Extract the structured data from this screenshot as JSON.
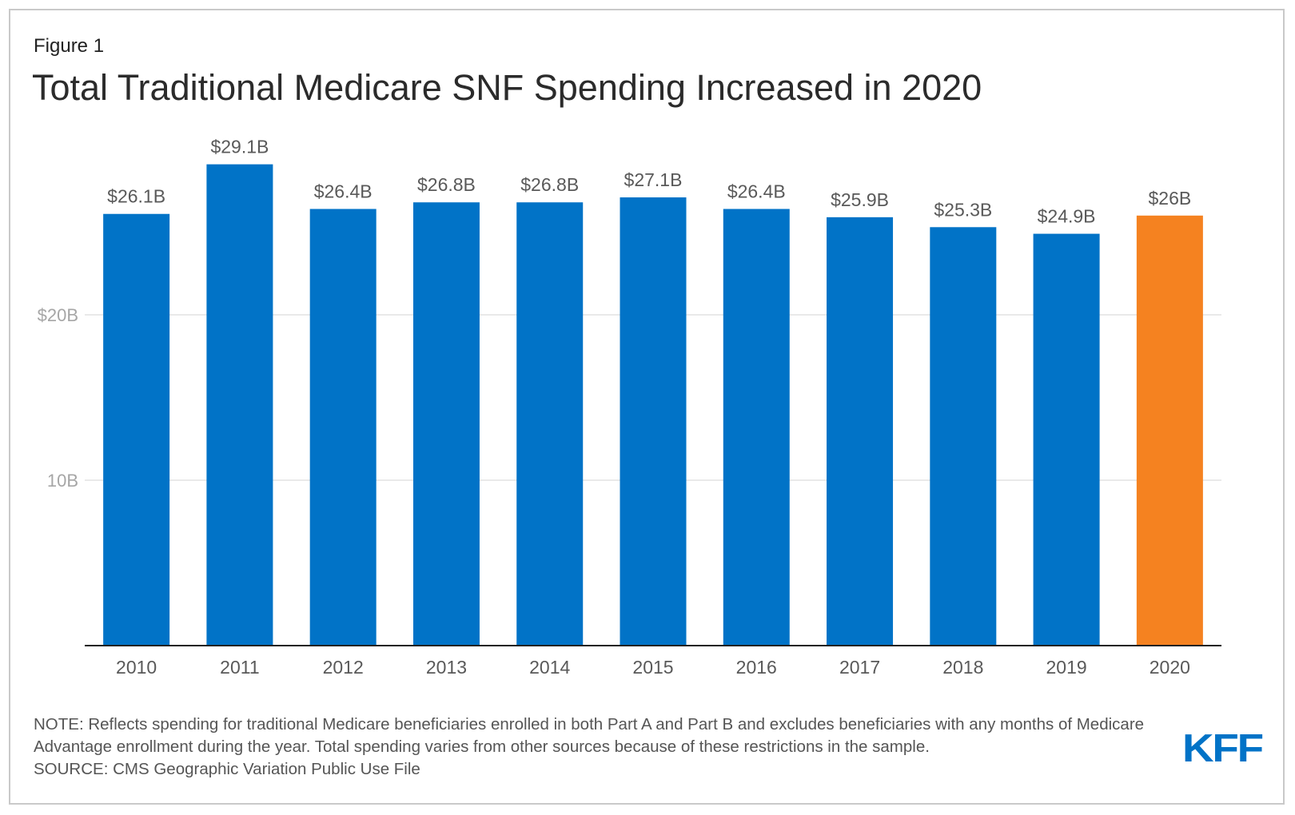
{
  "figure_label": "Figure 1",
  "title": "Total Traditional Medicare SNF Spending Increased in 2020",
  "note": "NOTE: Reflects spending for traditional Medicare beneficiaries enrolled in both Part A and Part B and excludes beneficiaries with any months of Medicare Advantage enrollment during the year. Total spending varies from other sources because of these restrictions in the sample.",
  "source": "SOURCE: CMS Geographic Variation Public Use File",
  "logo_text": "KFF",
  "colors": {
    "bar": "#0173c7",
    "highlight": "#f58220",
    "grid": "#e2e2e2",
    "axis": "#222222",
    "logo": "#0173c7"
  },
  "chart_data": {
    "type": "bar",
    "title": "Total Traditional Medicare SNF Spending Increased in 2020",
    "xlabel": "",
    "ylabel": "",
    "categories": [
      "2010",
      "2011",
      "2012",
      "2013",
      "2014",
      "2015",
      "2016",
      "2017",
      "2018",
      "2019",
      "2020"
    ],
    "values": [
      26.1,
      29.1,
      26.4,
      26.8,
      26.8,
      27.1,
      26.4,
      25.9,
      25.3,
      24.9,
      26
    ],
    "data_labels": [
      "$26.1B",
      "$29.1B",
      "$26.4B",
      "$26.8B",
      "$26.8B",
      "$27.1B",
      "$26.4B",
      "$25.9B",
      "$25.3B",
      "$24.9B",
      "$26B"
    ],
    "highlight_index": 10,
    "y_ticks": [
      {
        "value": 10,
        "label": "10B"
      },
      {
        "value": 20,
        "label": "$20B"
      }
    ],
    "ylim": [
      0,
      30
    ],
    "grid": true
  }
}
